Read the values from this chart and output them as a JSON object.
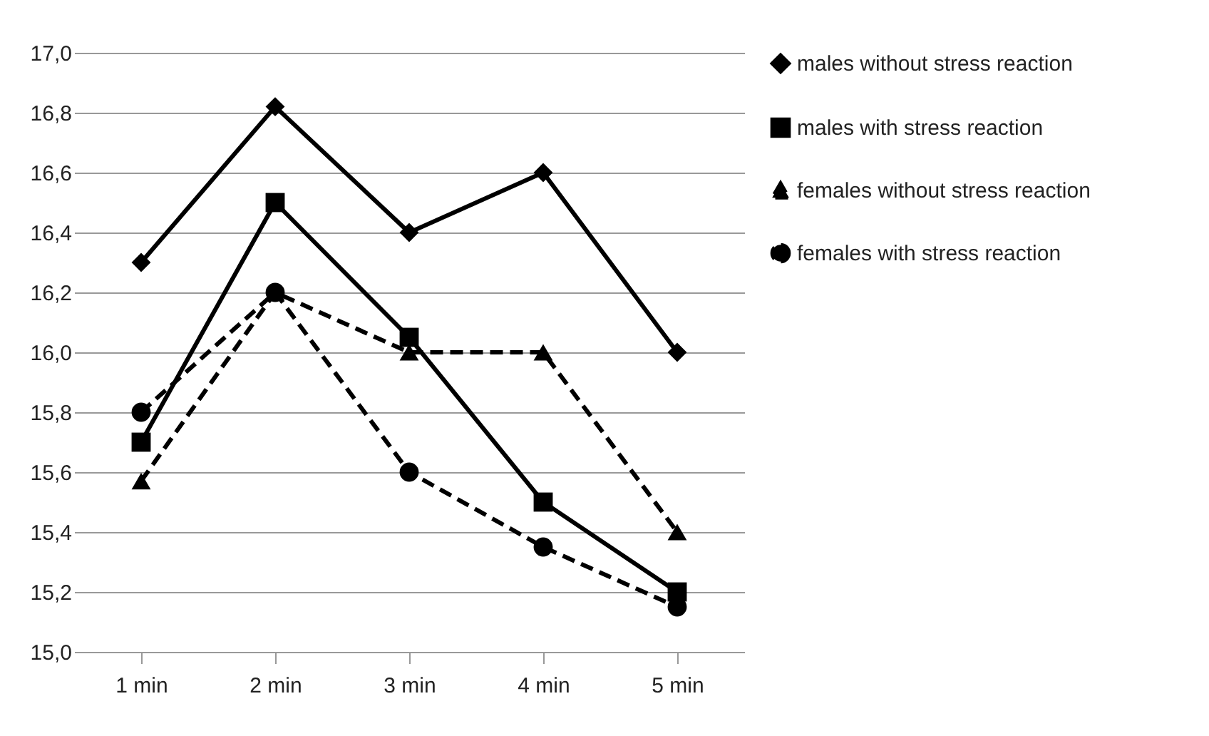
{
  "chart_data": {
    "type": "line",
    "categories": [
      "1 min",
      "2 min",
      "3 min",
      "4 min",
      "5 min"
    ],
    "series": [
      {
        "name": "males without stress reaction",
        "color": "#000000",
        "marker": "diamond",
        "line_style": "solid",
        "values": [
          16.3,
          16.82,
          16.4,
          16.6,
          16.0
        ]
      },
      {
        "name": "males with stress reaction",
        "color": "#000000",
        "marker": "square",
        "line_style": "solid",
        "values": [
          15.7,
          16.5,
          16.05,
          15.5,
          15.2
        ]
      },
      {
        "name": "females without stress reaction",
        "color": "#000000",
        "marker": "triangle",
        "line_style": "dashed",
        "values": [
          15.57,
          16.2,
          16.0,
          16.0,
          15.4
        ]
      },
      {
        "name": "females with stress reaction",
        "color": "#000000",
        "marker": "circle",
        "line_style": "dashed",
        "values": [
          15.8,
          16.2,
          15.6,
          15.35,
          15.15
        ]
      }
    ],
    "ylim": [
      15.0,
      17.0
    ],
    "yticks": [
      {
        "value": 15.0,
        "label": "15,0"
      },
      {
        "value": 15.2,
        "label": "15,2"
      },
      {
        "value": 15.4,
        "label": "15,4"
      },
      {
        "value": 15.6,
        "label": "15,6"
      },
      {
        "value": 15.8,
        "label": "15,8"
      },
      {
        "value": 16.0,
        "label": "16,0"
      },
      {
        "value": 16.2,
        "label": "16,2"
      },
      {
        "value": 16.4,
        "label": "16,4"
      },
      {
        "value": 16.6,
        "label": "16,6"
      },
      {
        "value": 16.8,
        "label": "16,8"
      },
      {
        "value": 17.0,
        "label": "17,0"
      }
    ],
    "grid": "y",
    "legend": "right"
  }
}
